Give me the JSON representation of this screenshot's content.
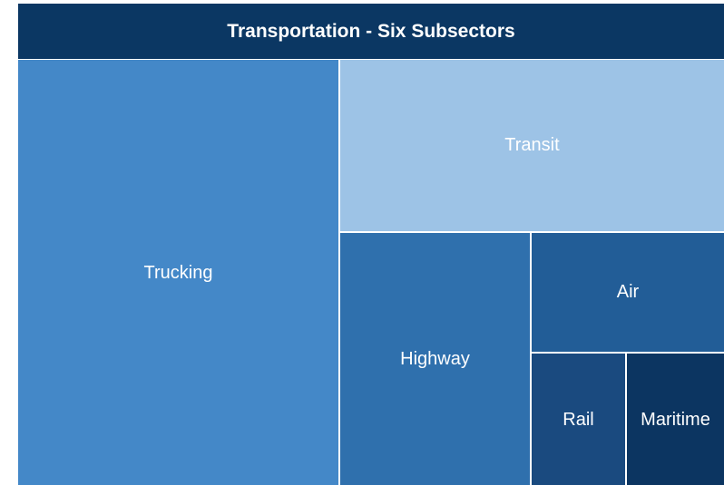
{
  "header": {
    "title": "Transportation - Six Subsectors"
  },
  "nodes": [
    {
      "label": "Trucking"
    },
    {
      "label": "Transit"
    },
    {
      "label": "Highway"
    },
    {
      "label": "Air"
    },
    {
      "label": "Rail"
    },
    {
      "label": "Maritime"
    }
  ]
}
